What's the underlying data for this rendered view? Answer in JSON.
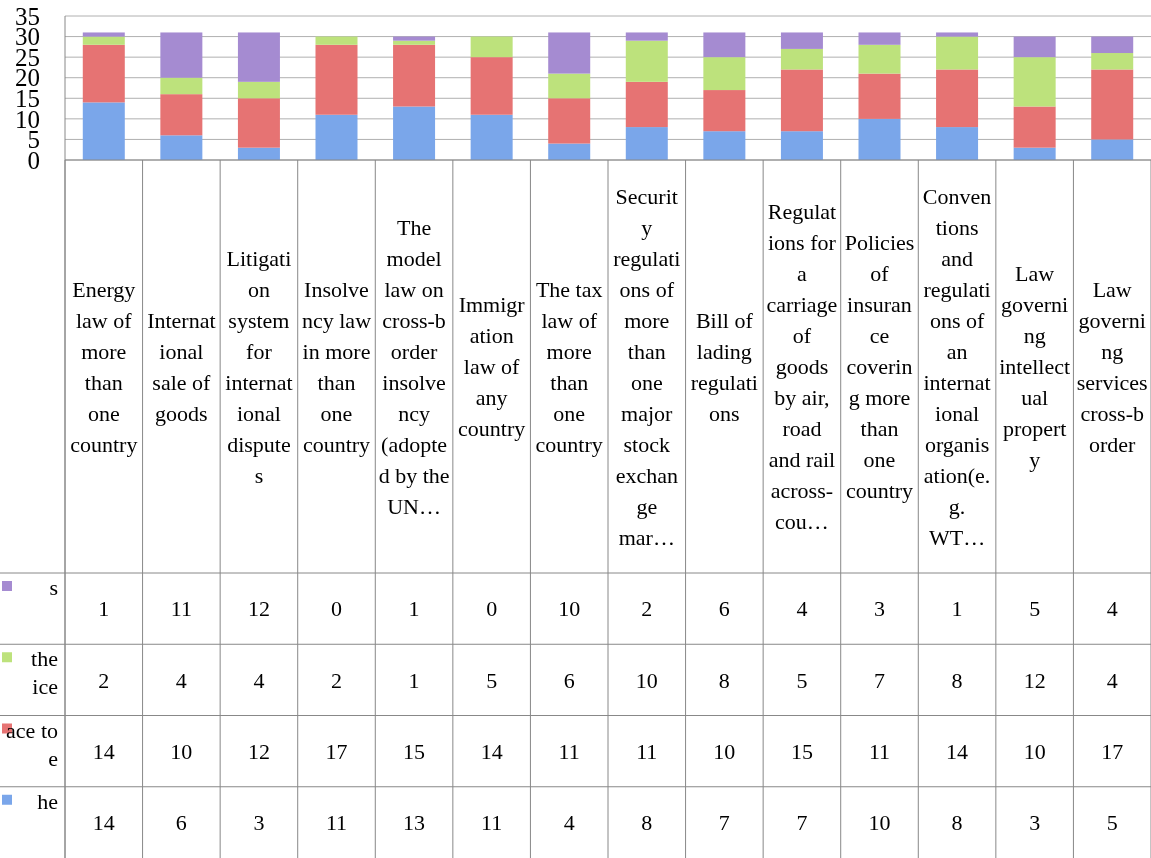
{
  "chart_data": {
    "type": "bar",
    "stacked": true,
    "categories": [
      "Energy law of more than one country",
      "International sale of goods",
      "Litigation system for international disputes",
      "Insolvency law in more than one country",
      "The model law on cross-border insolvency (adopted by the UN…",
      "Immigration law of any country",
      "The tax law of more than one country",
      "Security regulations of more than one major stock exchange mar…",
      "Bill of lading regulations",
      "Regulations for a carriage of goods by air, road and rail across-cou…",
      "Policies of insurance covering more than one country",
      "Conventions and regulations of an international organisation(e.g. WT…",
      "Law governing intellectual property",
      "Law governing services cross-border"
    ],
    "series": [
      {
        "name": "he",
        "color": "#7aa6ea",
        "values": [
          14,
          6,
          3,
          11,
          13,
          11,
          4,
          8,
          7,
          7,
          10,
          8,
          3,
          5
        ]
      },
      {
        "name": "ace to\ne",
        "color": "#e67373",
        "values": [
          14,
          10,
          12,
          17,
          15,
          14,
          11,
          11,
          10,
          15,
          11,
          14,
          10,
          17
        ]
      },
      {
        "name": "the\nice",
        "color": "#bde27c",
        "values": [
          2,
          4,
          4,
          2,
          1,
          5,
          6,
          10,
          8,
          5,
          7,
          8,
          12,
          4
        ]
      },
      {
        "name": "s",
        "color": "#a58bd1",
        "values": [
          1,
          11,
          12,
          0,
          1,
          0,
          10,
          2,
          6,
          4,
          3,
          1,
          5,
          4
        ]
      }
    ],
    "ylim": [
      0,
      35
    ],
    "yticks": [
      0,
      5,
      10,
      15,
      20,
      25,
      30,
      35
    ],
    "grid": "y",
    "data_labels": true,
    "legend": "bottom"
  }
}
